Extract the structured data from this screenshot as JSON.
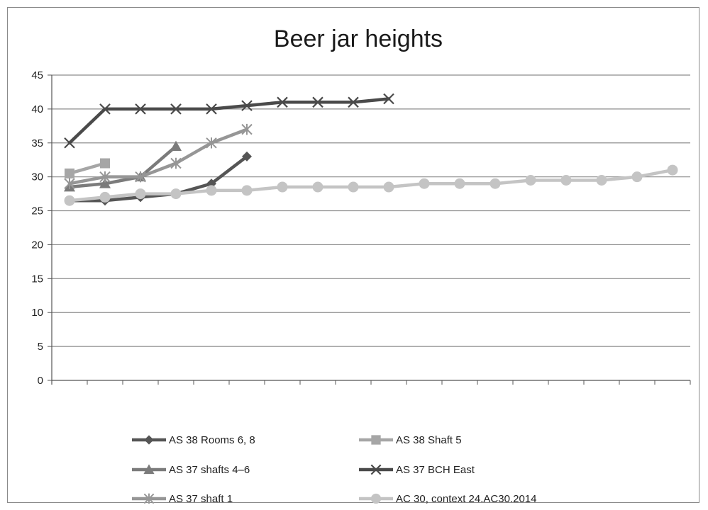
{
  "chart_data": {
    "type": "line",
    "title": "Beer jar heights",
    "xlabel": "",
    "ylabel": "",
    "ylim": [
      0,
      45
    ],
    "yticks": [
      0,
      5,
      10,
      15,
      20,
      25,
      30,
      35,
      40,
      45
    ],
    "x_count": 18,
    "grid": "horizontal",
    "legend_position": "bottom",
    "series": [
      {
        "name": "AS 38 Rooms 6, 8",
        "color": "#555555",
        "marker": "diamond",
        "values": [
          26.5,
          26.5,
          27,
          27.5,
          29,
          33
        ]
      },
      {
        "name": "AS 38 Shaft 5",
        "color": "#a6a6a6",
        "marker": "square",
        "values": [
          30.5,
          32
        ]
      },
      {
        "name": "AS 37 shafts 4–6",
        "color": "#7b7b7b",
        "marker": "triangle",
        "values": [
          28.5,
          29,
          30,
          34.5
        ]
      },
      {
        "name": "AS 37 BCH East",
        "color": "#4a4a4a",
        "marker": "x",
        "values": [
          35,
          40,
          40,
          40,
          40,
          40.5,
          41,
          41,
          41,
          41.5
        ]
      },
      {
        "name": "AS 37 shaft 1",
        "color": "#969696",
        "marker": "star",
        "values": [
          29,
          30,
          30,
          32,
          35,
          37
        ]
      },
      {
        "name": "AC 30, context 24.AC30.2014",
        "color": "#c4c4c4",
        "marker": "circle",
        "values": [
          26.5,
          27,
          27.5,
          27.5,
          28,
          28,
          28.5,
          28.5,
          28.5,
          28.5,
          29,
          29,
          29,
          29.5,
          29.5,
          29.5,
          30,
          31
        ]
      }
    ]
  }
}
